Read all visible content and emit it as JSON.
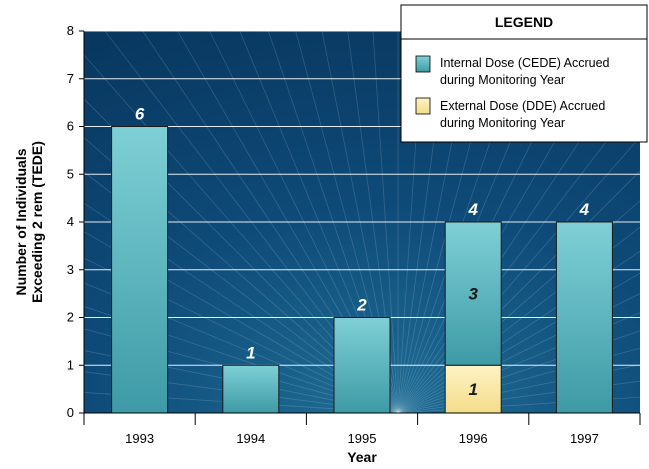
{
  "chart_data": {
    "type": "bar",
    "stacked": true,
    "categories": [
      "1993",
      "1994",
      "1995",
      "1996",
      "1997"
    ],
    "series": [
      {
        "name": "Internal Dose (CEDE) Accrued during Monitoring Year",
        "values": [
          6,
          1,
          2,
          3,
          4
        ],
        "color": "#4fb3bd"
      },
      {
        "name": "External Dose (DDE) Accrued during Monitoring Year",
        "values": [
          0,
          0,
          0,
          1,
          0
        ],
        "color": "#fbeaa2"
      }
    ],
    "totals": [
      6,
      1,
      2,
      4,
      4
    ],
    "xlabel": "Year",
    "ylabel_lines": [
      "Number of Individuals",
      "Exceeding 2 rem (TEDE)"
    ],
    "ylim": [
      0,
      8
    ],
    "yticks": [
      "0",
      "1",
      "2",
      "3",
      "4",
      "5",
      "6",
      "7",
      "8"
    ],
    "grid": true,
    "legend": {
      "title": "LEGEND",
      "placement": "top-right",
      "items": [
        {
          "line1": "Internal Dose (CEDE) Accrued",
          "line2": "during Monitoring Year"
        },
        {
          "line1": "External Dose (DDE) Accrued",
          "line2": "during Monitoring Year"
        }
      ]
    },
    "segment_labels": [
      {
        "category": "1996",
        "series": 0,
        "text": "3"
      },
      {
        "category": "1996",
        "series": 1,
        "text": "1"
      }
    ],
    "colors": {
      "background": "#0a3c66",
      "gridline": "#ffffff",
      "total_label": "#ffffff",
      "segment_label": "#1a1a1a"
    }
  }
}
